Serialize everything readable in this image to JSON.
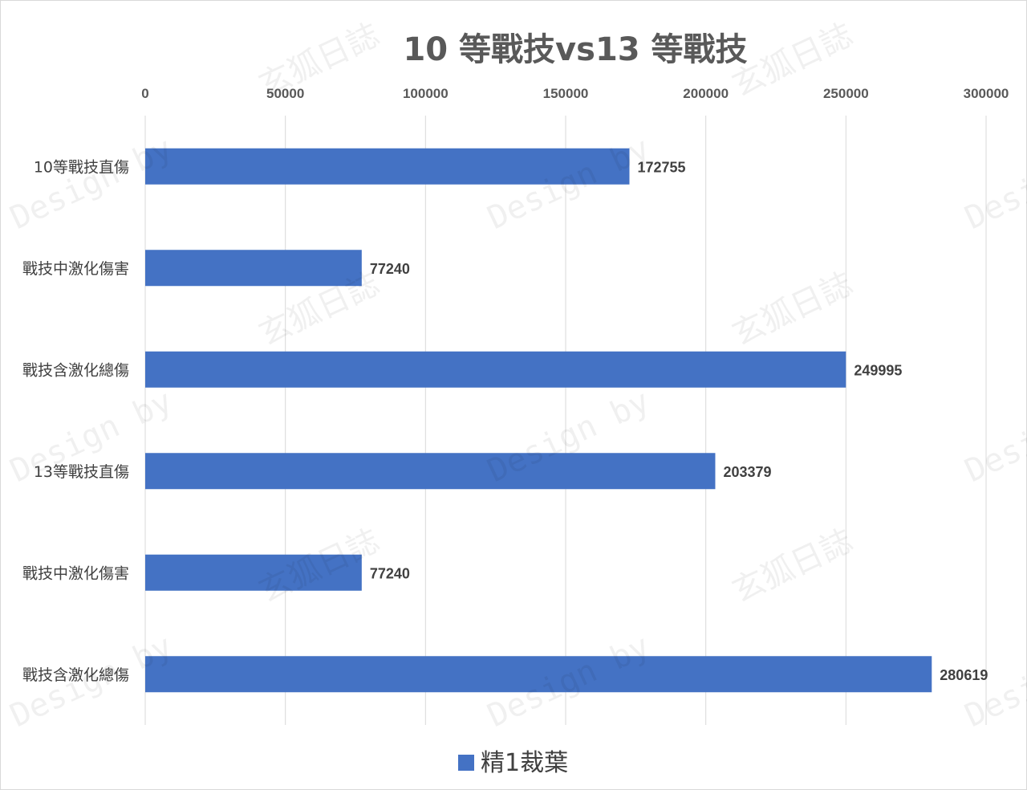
{
  "chart_data": {
    "type": "bar",
    "orientation": "horizontal",
    "title": "10 等戰技vs13  等戰技",
    "categories": [
      "10等戰技直傷",
      "戰技中激化傷害",
      "戰技含激化總傷",
      "13等戰技直傷",
      "戰技中激化傷害",
      "戰技含激化總傷"
    ],
    "series": [
      {
        "name": "精1裁葉",
        "values": [
          172755,
          77240,
          249995,
          203379,
          77240,
          280619
        ],
        "color": "#4472c4"
      }
    ],
    "xlim": [
      0,
      300000
    ],
    "x_ticks": [
      "0",
      "50000",
      "100000",
      "150000",
      "200000",
      "250000",
      "300000"
    ],
    "x_axis_position": "top",
    "grid": true,
    "legend_position": "bottom",
    "data_labels": [
      "172755",
      "77240",
      "249995",
      "203379",
      "77240",
      "280619"
    ]
  },
  "watermark": {
    "text_latin": "Design by",
    "text_cjk": "玄狐日誌"
  }
}
